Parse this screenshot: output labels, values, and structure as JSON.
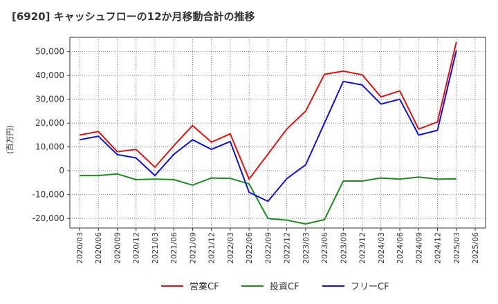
{
  "chart_data": {
    "type": "line",
    "title": "[6920]  キャッシュフローの12か月移動合計の推移",
    "ylabel": "(百万円)",
    "xlabel": "",
    "ylim": [
      -24000,
      56000
    ],
    "yticks": [
      -20000,
      -10000,
      0,
      10000,
      20000,
      30000,
      40000,
      50000
    ],
    "ytick_labels": [
      "-20,000",
      "-10,000",
      "0",
      "10,000",
      "20,000",
      "30,000",
      "40,000",
      "50,000"
    ],
    "x_tick_labels": [
      "2020/03",
      "2020/06",
      "2020/09",
      "2020/12",
      "2021/03",
      "2021/06",
      "2021/09",
      "2021/12",
      "2022/03",
      "2022/06",
      "2022/09",
      "2022/12",
      "2023/03",
      "2023/06",
      "2023/09",
      "2023/12",
      "2024/03",
      "2024/06",
      "2024/09",
      "2024/12",
      "2025/03",
      "2025/06"
    ],
    "x": [
      "2020/03",
      "2020/06",
      "2020/09",
      "2020/12",
      "2021/03",
      "2021/06",
      "2021/09",
      "2021/12",
      "2022/03",
      "2022/06",
      "2022/09",
      "2022/12",
      "2023/03",
      "2023/06",
      "2023/09",
      "2023/12",
      "2024/03",
      "2024/06",
      "2024/09",
      "2024/12",
      "2025/03"
    ],
    "grid": true,
    "legend_position": "bottom",
    "series": [
      {
        "name": "営業CF",
        "color": "#dd1111",
        "values": [
          15000,
          16500,
          8000,
          9000,
          1500,
          10500,
          19000,
          12000,
          15500,
          -3500,
          7000,
          17500,
          25000,
          40500,
          41800,
          40300,
          31000,
          33500,
          17500,
          20500,
          54000
        ]
      },
      {
        "name": "投資CF",
        "color": "#228822",
        "values": [
          -2000,
          -2000,
          -1300,
          -3700,
          -3500,
          -3700,
          -6000,
          -3000,
          -3200,
          -5500,
          -20000,
          -20700,
          -22300,
          -20500,
          -4300,
          -4300,
          -3000,
          -3500,
          -2600,
          -3500,
          -3400
        ]
      },
      {
        "name": "フリーCF",
        "color": "#1111cc",
        "values": [
          13000,
          14500,
          6800,
          5400,
          -2000,
          6900,
          13000,
          9000,
          12300,
          -9000,
          -12800,
          -3300,
          2500,
          20000,
          37500,
          36000,
          28000,
          30000,
          15000,
          17000,
          50500
        ]
      }
    ]
  }
}
